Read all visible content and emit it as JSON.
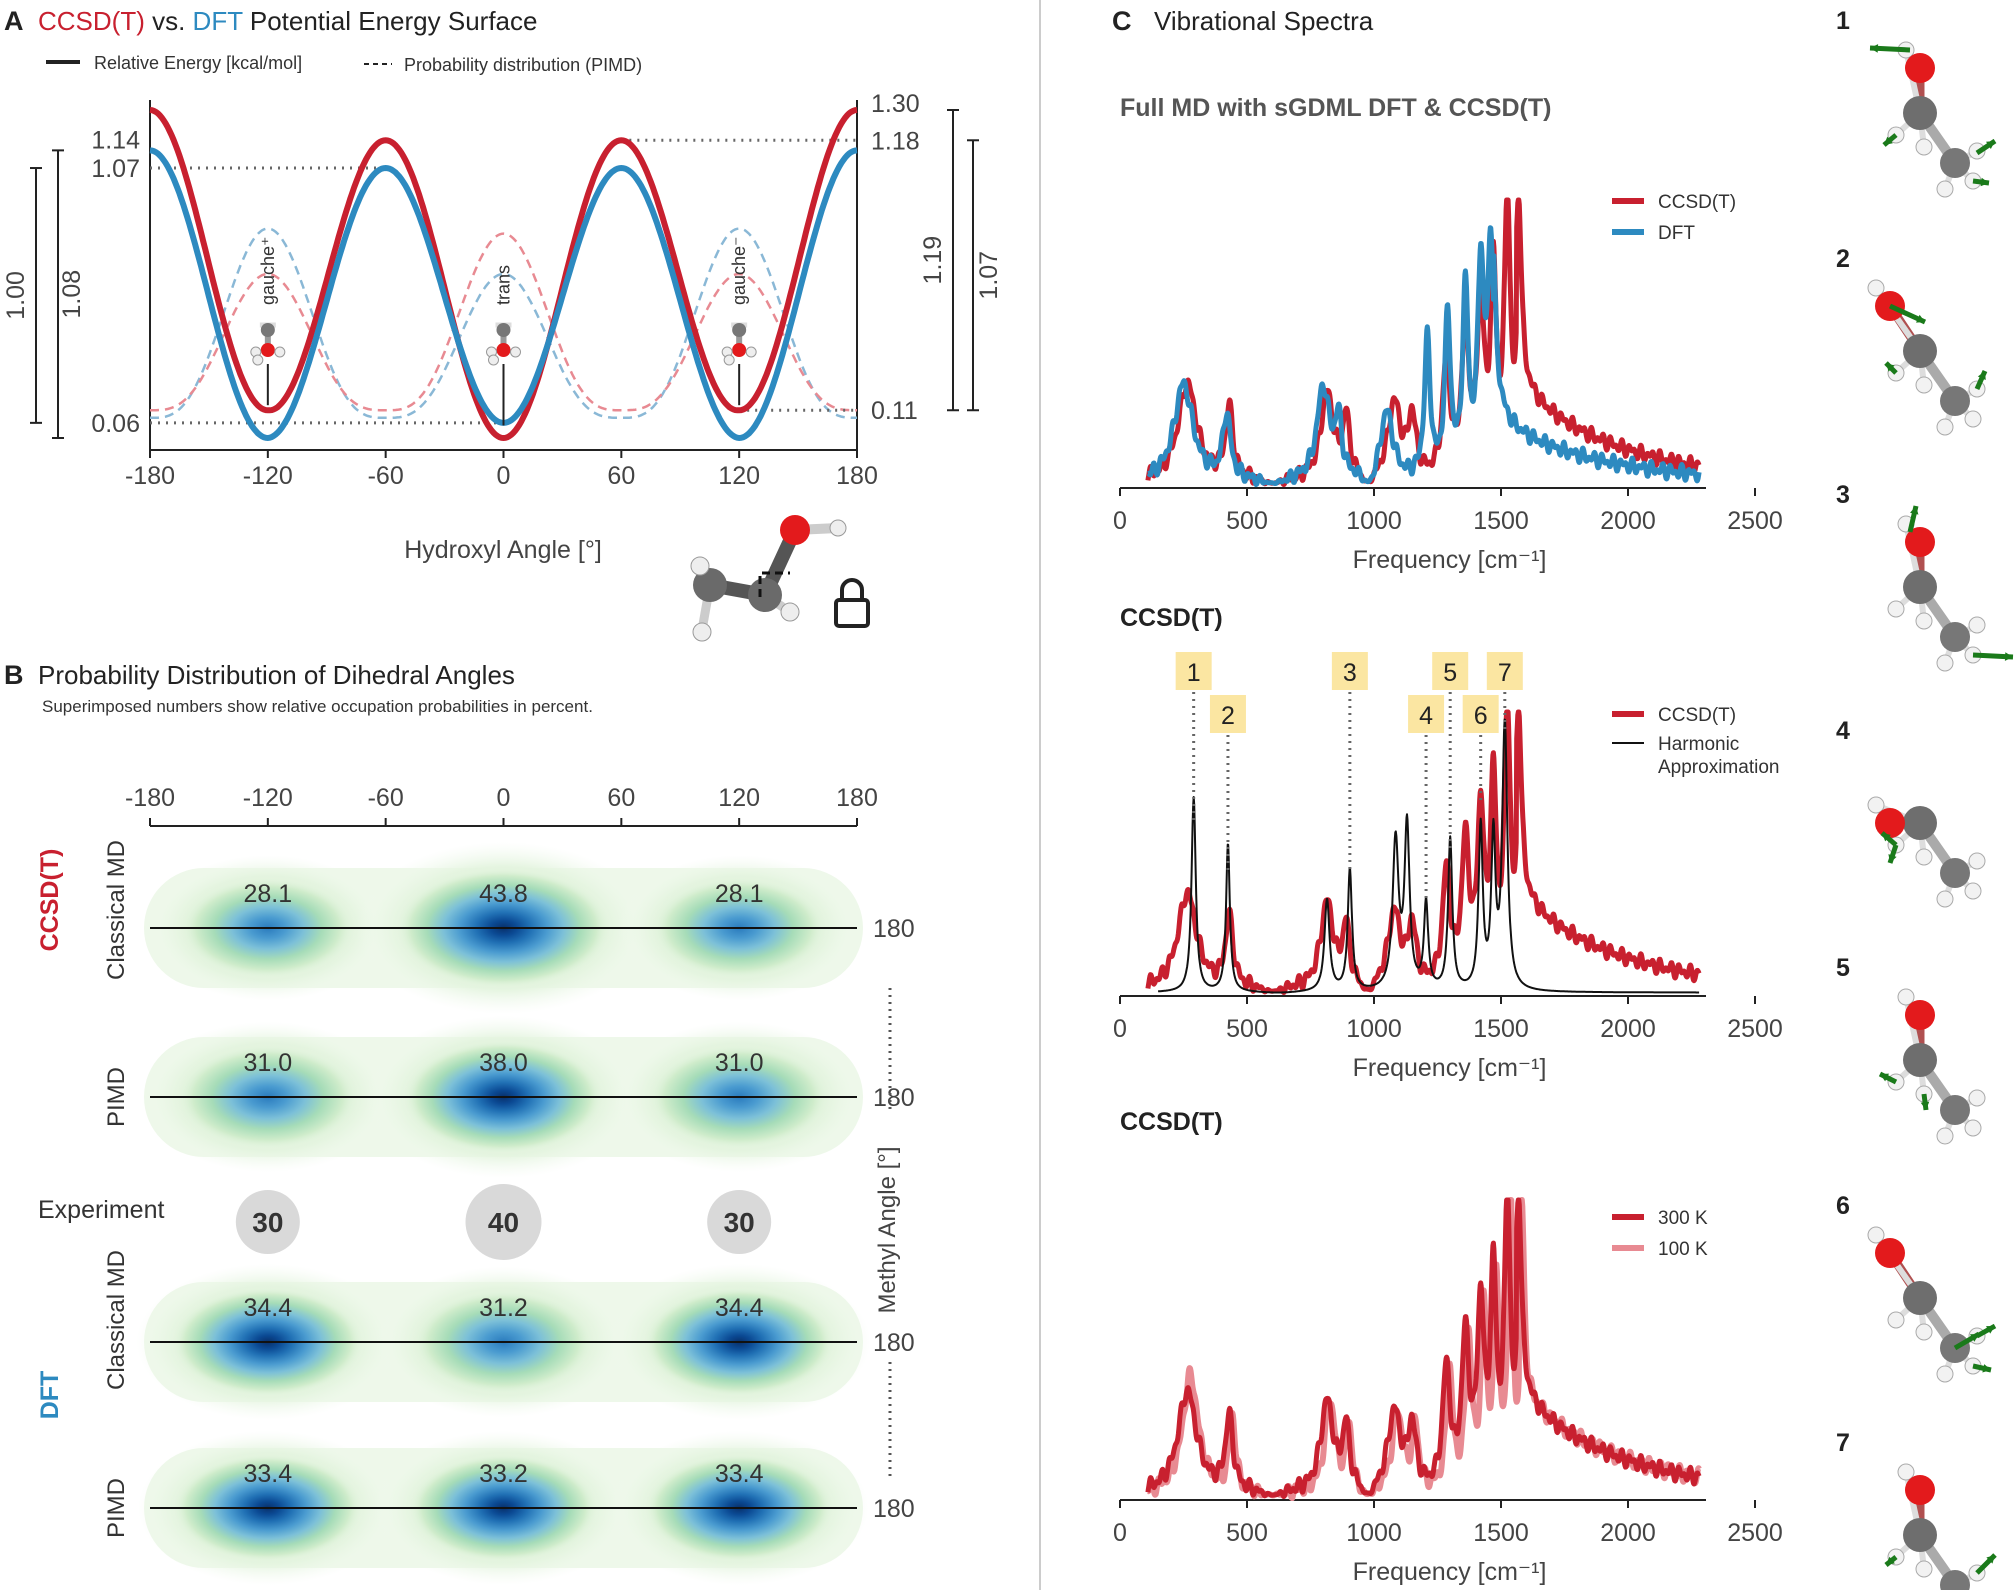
{
  "panel_a": {
    "letter": "A",
    "title_ccsd": "CCSD(T)",
    "title_mid": " vs. ",
    "title_dft": "DFT",
    "title_end": " Potential Energy Surface",
    "legend_solid": "Relative Energy [kcal/mol]",
    "legend_dashed": "Probability distribution (PIMD)",
    "xlabel": "Hydroxyl Angle [°]",
    "state_labels": [
      "gauche⁺",
      "trans",
      "gauche⁻"
    ]
  },
  "panel_b": {
    "letter": "B",
    "title": "Probability Distribution of Dihedral Angles",
    "subtitle": "Superimposed numbers show relative occupation probabilities in percent.",
    "group_ccsd": "CCSD(T)",
    "group_dft": "DFT",
    "row_classical": "Classical MD",
    "row_pimd": "PIMD",
    "experiment_label": "Experiment",
    "y_axis_label": "Methyl Angle [°]"
  },
  "panel_c": {
    "letter": "C",
    "title": "Vibrational Spectra",
    "sub1": "Full MD with sGDML DFT & CCSD(T)",
    "sub2": "CCSD(T)",
    "sub3": "CCSD(T)",
    "xlabel": "Frequency [cm⁻¹]",
    "modes": [
      "1",
      "2",
      "3",
      "4",
      "5",
      "6",
      "7"
    ]
  },
  "colors": {
    "ccsd": "#c8202f",
    "dft": "#2d8ac0",
    "ccsd_light": "#e88a92",
    "dft_light": "#8ab8d6",
    "harmonic": "#111111",
    "tag_bg": "#fbe6a2",
    "experiment_circle": "#d9d9d9"
  },
  "chart_data": [
    {
      "type": "line",
      "panel": "A",
      "xlabel": "Hydroxyl Angle [°]",
      "xlim": [
        -180,
        180
      ],
      "ylim": [
        0,
        1.3
      ],
      "xticks": [
        -180,
        -120,
        -60,
        0,
        60,
        120,
        180
      ],
      "left_ticks": [
        1.14,
        1.07,
        0.06
      ],
      "right_ticks": [
        1.3,
        1.18,
        0.11
      ],
      "bracket_labels_left": [
        "1.00",
        "1.08"
      ],
      "bracket_labels_right": [
        "1.19",
        "1.07"
      ],
      "series": [
        {
          "name": "CCSD(T)",
          "style": "solid",
          "minima": [
            [
              -120,
              0.11
            ],
            [
              0,
              0.0
            ],
            [
              120,
              0.11
            ]
          ],
          "maxima": [
            [
              -180,
              1.3
            ],
            [
              -60,
              1.18
            ],
            [
              60,
              1.18
            ],
            [
              180,
              1.3
            ]
          ]
        },
        {
          "name": "DFT",
          "style": "solid",
          "minima": [
            [
              -120,
              0.0
            ],
            [
              0,
              0.06
            ],
            [
              120,
              0.0
            ]
          ],
          "maxima": [
            [
              -180,
              1.14
            ],
            [
              -60,
              1.07
            ],
            [
              60,
              1.07
            ],
            [
              180,
              1.14
            ]
          ]
        }
      ],
      "legend": [
        "Relative Energy [kcal/mol]",
        "Probability distribution (PIMD)"
      ]
    },
    {
      "type": "heatmap",
      "panel": "B",
      "xlim": [
        -180,
        180
      ],
      "xticks": [
        -180,
        -120,
        -60,
        0,
        60,
        120,
        180
      ],
      "y_tick": "180",
      "rows": [
        {
          "method": "CCSD(T)",
          "kind": "Classical MD",
          "values": [
            "28.1",
            "43.8",
            "28.1"
          ]
        },
        {
          "method": "CCSD(T)",
          "kind": "PIMD",
          "values": [
            "31.0",
            "38.0",
            "31.0"
          ]
        },
        {
          "method": "Experiment",
          "kind": "",
          "values": [
            "30",
            "40",
            "30"
          ]
        },
        {
          "method": "DFT",
          "kind": "Classical MD",
          "values": [
            "34.4",
            "31.2",
            "34.4"
          ]
        },
        {
          "method": "DFT",
          "kind": "PIMD",
          "values": [
            "33.4",
            "33.2",
            "33.4"
          ]
        }
      ]
    },
    {
      "type": "line",
      "panel": "C1",
      "xlabel": "Frequency [cm⁻¹]",
      "xlim": [
        0,
        2500
      ],
      "xticks": [
        0,
        500,
        1000,
        1500,
        2000,
        2500
      ],
      "series": [
        {
          "name": "CCSD(T)"
        },
        {
          "name": "DFT"
        }
      ]
    },
    {
      "type": "line",
      "panel": "C2",
      "xlabel": "Frequency [cm⁻¹]",
      "xlim": [
        0,
        2500
      ],
      "xticks": [
        0,
        500,
        1000,
        1500,
        2000,
        2500
      ],
      "series": [
        {
          "name": "CCSD(T)"
        },
        {
          "name": "Harmonic Approximation"
        }
      ],
      "mode_markers": [
        {
          "label": "1",
          "x": 290
        },
        {
          "label": "2",
          "x": 425
        },
        {
          "label": "3",
          "x": 905
        },
        {
          "label": "4",
          "x": 1205
        },
        {
          "label": "5",
          "x": 1300
        },
        {
          "label": "6",
          "x": 1420
        },
        {
          "label": "7",
          "x": 1515
        }
      ]
    },
    {
      "type": "line",
      "panel": "C3",
      "xlabel": "Frequency [cm⁻¹]",
      "xlim": [
        0,
        2500
      ],
      "xticks": [
        0,
        500,
        1000,
        1500,
        2000,
        2500
      ],
      "series": [
        {
          "name": "300 K"
        },
        {
          "name": "100 K"
        }
      ]
    }
  ]
}
